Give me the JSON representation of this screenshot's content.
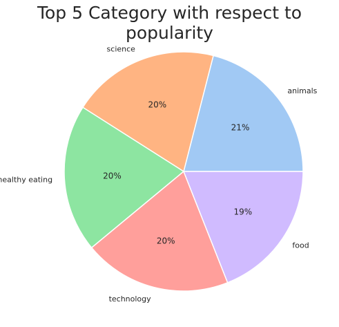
{
  "chart_data": {
    "type": "pie",
    "title": "Top 5 Category with respect to popularity",
    "slices": [
      {
        "label": "animals",
        "value": 21,
        "pct_label": "21%",
        "color": "#a1c9f4"
      },
      {
        "label": "science",
        "value": 20,
        "pct_label": "20%",
        "color": "#ffb482"
      },
      {
        "label": "healthy eating",
        "value": 20,
        "pct_label": "20%",
        "color": "#8de5a1"
      },
      {
        "label": "technology",
        "value": 20,
        "pct_label": "20%",
        "color": "#ff9f9b"
      },
      {
        "label": "food",
        "value": 19,
        "pct_label": "19%",
        "color": "#d0bbff"
      }
    ],
    "start_angle_deg": 0,
    "direction": "counterclockwise",
    "edge_color": "#ffffff"
  }
}
